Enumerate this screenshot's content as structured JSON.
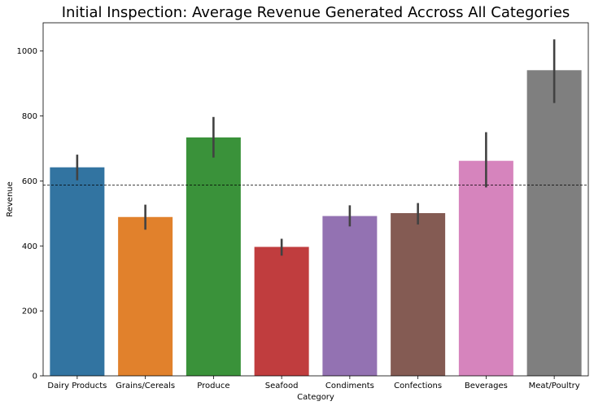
{
  "chart_data": {
    "type": "bar",
    "title": "Initial Inspection: Average Revenue Generated Accross All Categories",
    "xlabel": "Category",
    "ylabel": "Revenue",
    "ylim": [
      0,
      1087
    ],
    "yticks": [
      0,
      200,
      400,
      600,
      800,
      1000
    ],
    "grid": false,
    "legend": "none",
    "reference_line": {
      "value": 587,
      "style": "dashed"
    },
    "categories": [
      "Dairy Products",
      "Grains/Cereals",
      "Produce",
      "Seafood",
      "Condiments",
      "Confections",
      "Beverages",
      "Meat/Poultry"
    ],
    "values": [
      642,
      489,
      734,
      397,
      492,
      501,
      662,
      941
    ],
    "error_low": [
      602,
      450,
      672,
      370,
      460,
      466,
      580,
      840
    ],
    "error_high": [
      681,
      527,
      797,
      422,
      525,
      532,
      750,
      1036
    ],
    "colors": [
      "#3274a1",
      "#e1812c",
      "#3a923a",
      "#c03d3e",
      "#9372b2",
      "#845b53",
      "#d684bd",
      "#7f7f7f"
    ]
  }
}
